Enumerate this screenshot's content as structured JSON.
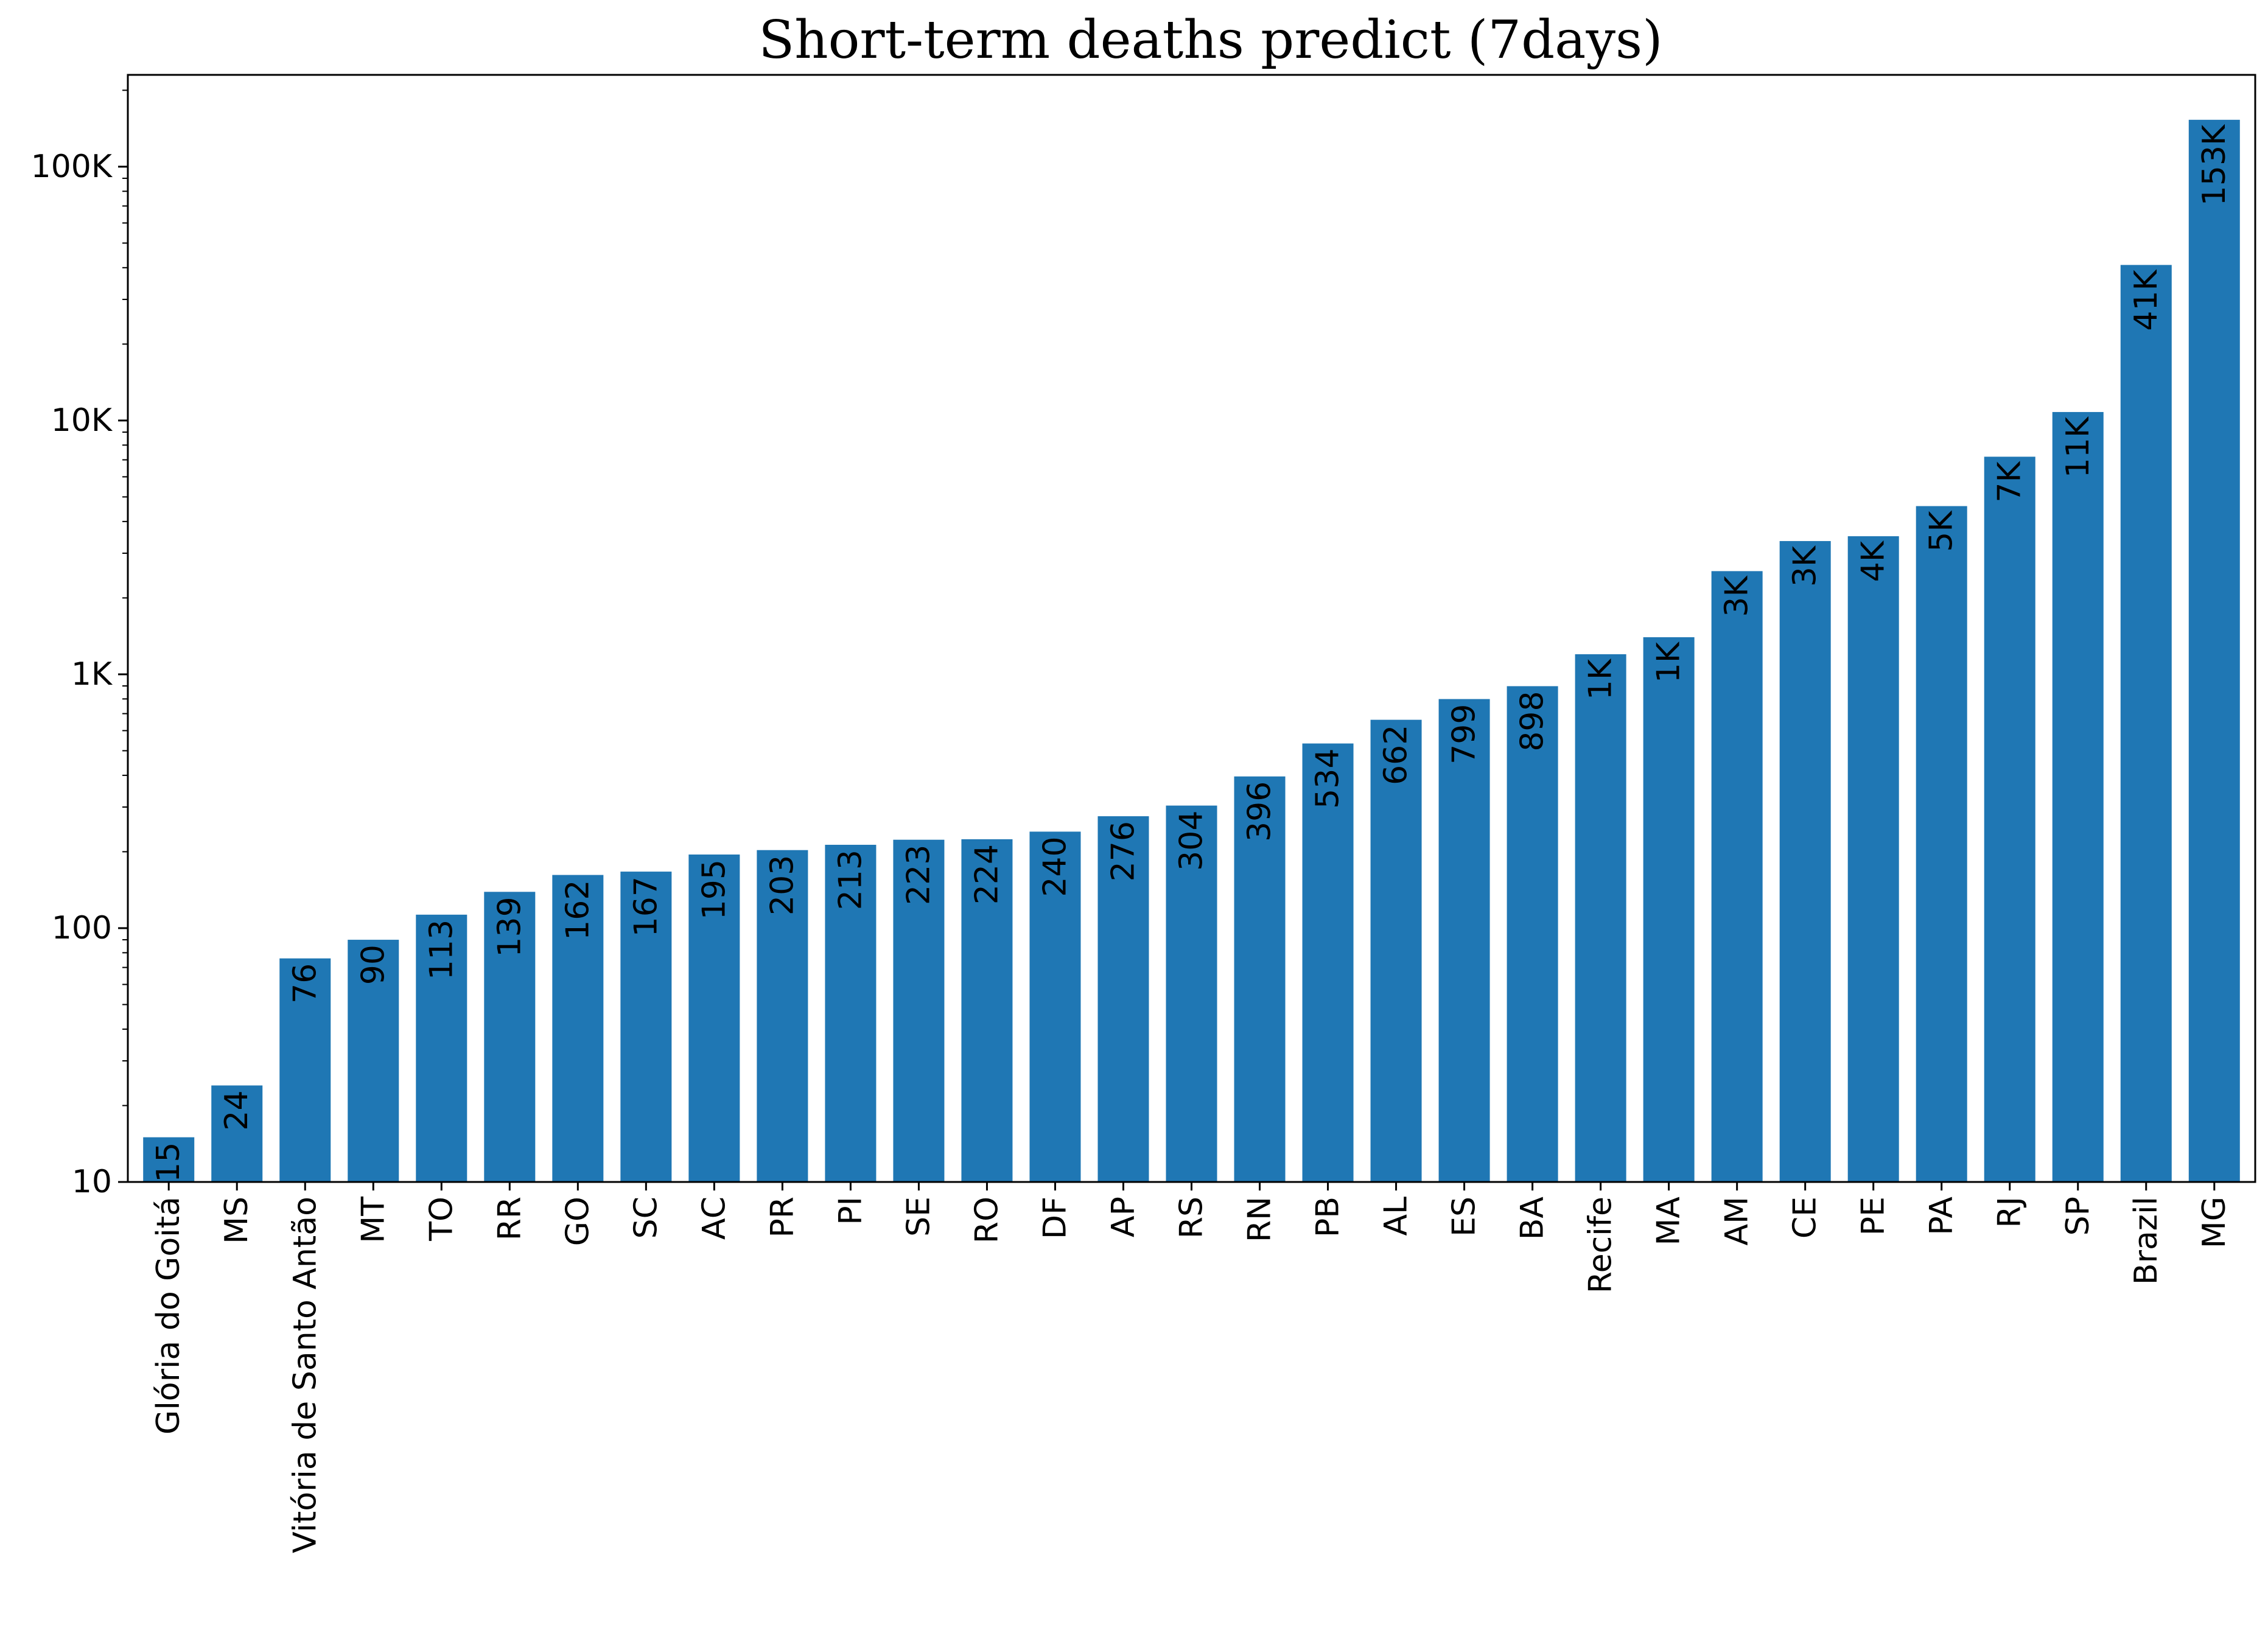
{
  "chart_data": {
    "type": "bar",
    "title": "Short-term deaths predict (7days)",
    "xlabel": "",
    "ylabel": "",
    "yscale": "log",
    "ylim": [
      10,
      230000
    ],
    "grid": false,
    "legend": "none",
    "bar_color": "#1f77b4",
    "yticks": [
      {
        "value": 10,
        "label": "10"
      },
      {
        "value": 100,
        "label": "100"
      },
      {
        "value": 1000,
        "label": "1K"
      },
      {
        "value": 10000,
        "label": "10K"
      },
      {
        "value": 100000,
        "label": "100K"
      }
    ],
    "categories": [
      "Glória do Goitá",
      "MS",
      "Vitória de Santo Antão",
      "MT",
      "TO",
      "RR",
      "GO",
      "SC",
      "AC",
      "PR",
      "PI",
      "SE",
      "RO",
      "DF",
      "AP",
      "RS",
      "RN",
      "PB",
      "AL",
      "ES",
      "BA",
      "Recife",
      "MA",
      "AM",
      "CE",
      "PE",
      "PA",
      "RJ",
      "SP",
      "Brazil",
      "MG"
    ],
    "values": [
      15,
      24,
      76,
      90,
      113,
      139,
      162,
      167,
      195,
      203,
      213,
      223,
      224,
      240,
      276,
      304,
      396,
      534,
      662,
      799,
      898,
      1200,
      1400,
      2550,
      3350,
      3500,
      4600,
      7200,
      10800,
      41000,
      153000
    ],
    "data_labels": [
      "15",
      "24",
      "76",
      "90",
      "113",
      "139",
      "162",
      "167",
      "195",
      "203",
      "213",
      "223",
      "224",
      "240",
      "276",
      "304",
      "396",
      "534",
      "662",
      "799",
      "898",
      "1K",
      "1K",
      "3K",
      "3K",
      "4K",
      "5K",
      "7K",
      "11K",
      "41K",
      "153K"
    ]
  }
}
